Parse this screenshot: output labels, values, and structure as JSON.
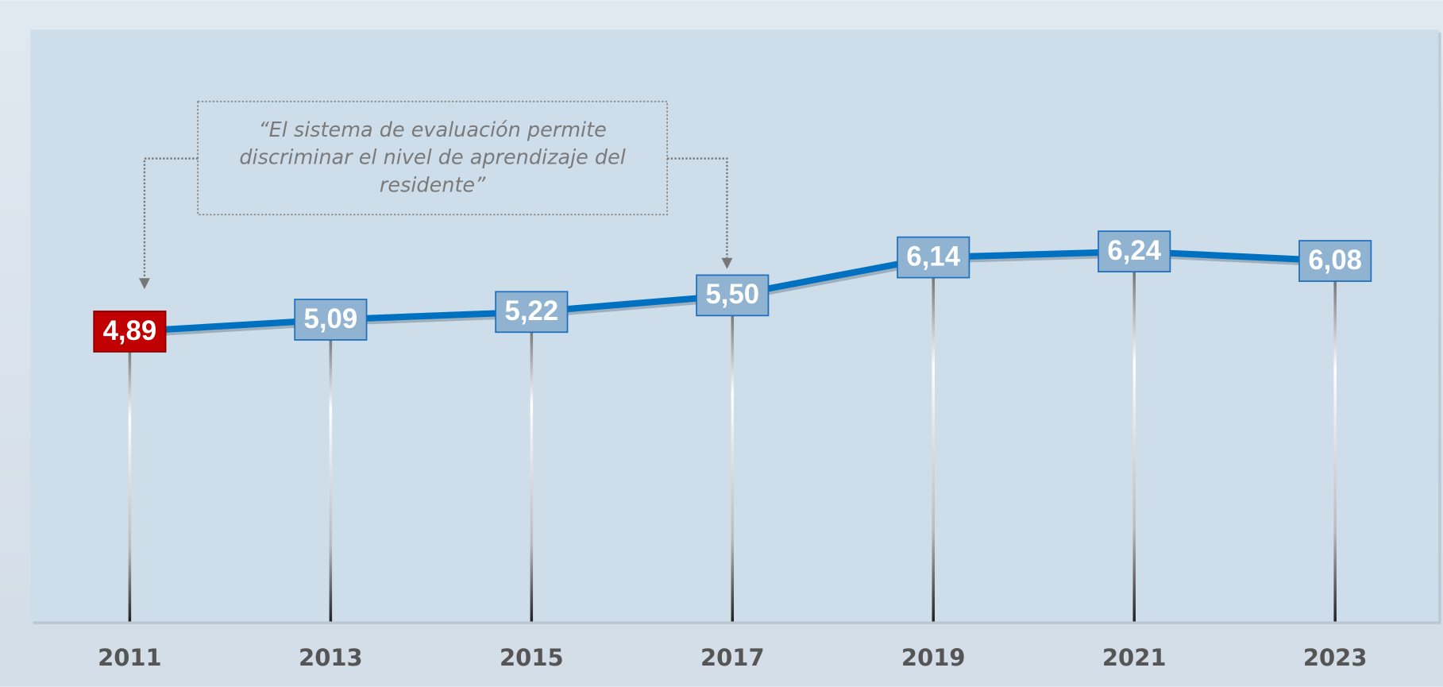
{
  "chart_data": {
    "type": "line",
    "categories": [
      "2011",
      "2013",
      "2015",
      "2017",
      "2019",
      "2021",
      "2023"
    ],
    "series": [
      {
        "color": "#0070c0",
        "values": [
          4.89,
          5.09,
          5.22,
          5.5,
          6.14,
          6.24,
          6.08
        ],
        "value_labels": [
          "4,89",
          "5,09",
          "5,22",
          "5,50",
          "6,14",
          "6,24",
          "6,08"
        ],
        "marker_colors": [
          "#c00000",
          "#8fb3d1",
          "#8fb3d1",
          "#8fb3d1",
          "#8fb3d1",
          "#8fb3d1",
          "#8fb3d1"
        ]
      }
    ],
    "annotation": {
      "lines": [
        "“El sistema de evaluación permite",
        "discriminar el nivel de aprendizaje del",
        "residente”"
      ]
    }
  }
}
